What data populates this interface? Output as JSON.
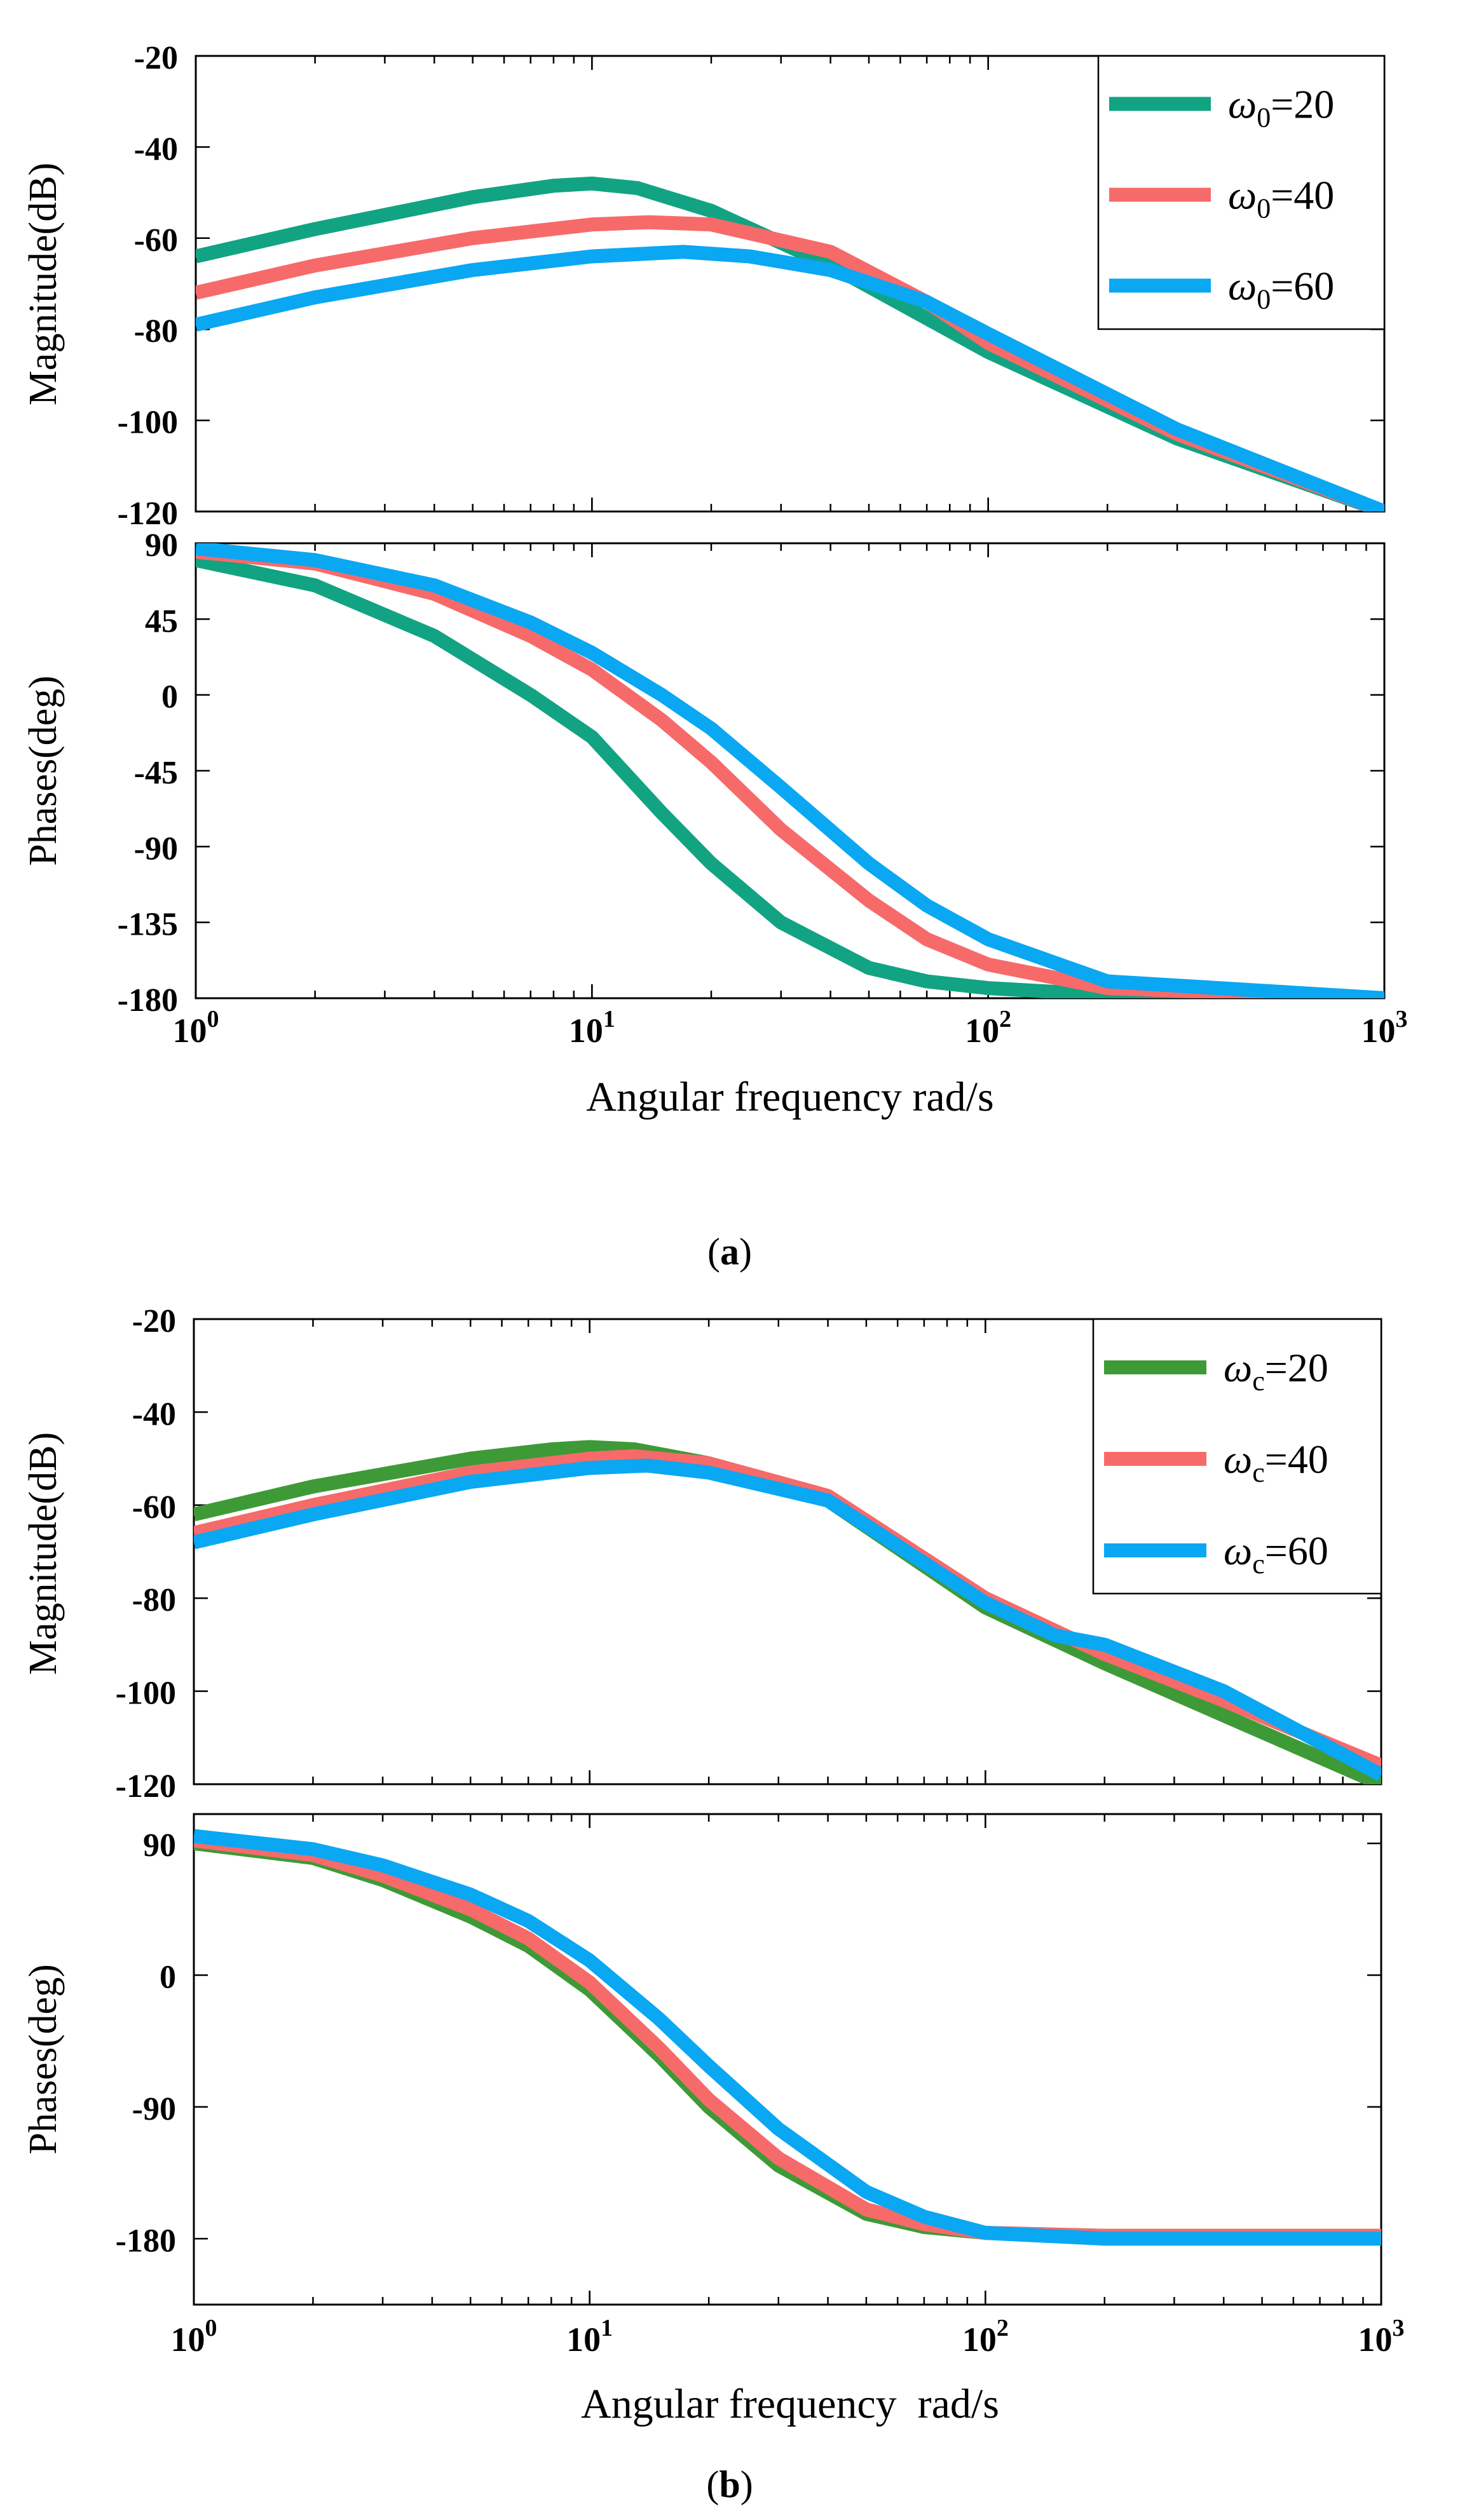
{
  "chart_data": [
    {
      "type": "line",
      "panel": "(a)",
      "caption_letter": "a",
      "xlabel": "Angular frequency rad/s",
      "xscale": "log",
      "xlim": [
        1,
        1000
      ],
      "xticks": [
        {
          "base": "10",
          "exp": "0"
        },
        {
          "base": "10",
          "exp": "1"
        },
        {
          "base": "10",
          "exp": "2"
        },
        {
          "base": "10",
          "exp": "3"
        }
      ],
      "legend": {
        "placement": "top-right",
        "symbol": "ω",
        "subscript": "0",
        "entries": [
          "=20",
          "=40",
          "=60"
        ]
      },
      "magnitude": {
        "ylabel": "Magnitude(dB)",
        "ylim": [
          -120,
          -20
        ],
        "yticks": [
          "-20",
          "-40",
          "-60",
          "-80",
          "-100",
          "-120"
        ],
        "series": [
          {
            "name": "ω0=20",
            "color": "#12a383",
            "x": [
              1,
              2,
              5,
              8,
              10,
              13,
              20,
              40,
              100,
              300,
              1000
            ],
            "y": [
              -64,
              -58,
              -51,
              -48.5,
              -48,
              -49,
              -54,
              -66,
              -85,
              -104,
              -120
            ]
          },
          {
            "name": "ω0=40",
            "color": "#f76a6a",
            "x": [
              1,
              2,
              5,
              10,
              14,
              20,
              40,
              70,
              100,
              300,
              1000
            ],
            "y": [
              -72,
              -66,
              -60,
              -57,
              -56.5,
              -57,
              -63,
              -74,
              -83,
              -103,
              -120
            ]
          },
          {
            "name": "ω0=60",
            "color": "#0aa7f3",
            "x": [
              1,
              2,
              5,
              10,
              17,
              25,
              40,
              70,
              100,
              300,
              1000
            ],
            "y": [
              -79,
              -73,
              -67,
              -64,
              -63,
              -64,
              -67,
              -74,
              -81,
              -102,
              -120
            ]
          }
        ]
      },
      "phase": {
        "ylabel": "Phases(deg)",
        "ylim": [
          -180,
          90
        ],
        "yticks": [
          "90",
          "45",
          "0",
          "-45",
          "-90",
          "-135",
          "-180"
        ],
        "series": [
          {
            "name": "ω0=20",
            "color": "#12a383",
            "x": [
              1,
              2,
              4,
              7,
              10,
              15,
              20,
              30,
              50,
              70,
              100,
              200,
              1000
            ],
            "y": [
              80,
              65,
              35,
              0,
              -25,
              -70,
              -100,
              -135,
              -162,
              -170,
              -174,
              -178,
              -180
            ]
          },
          {
            "name": "ω0=40",
            "color": "#f76a6a",
            "x": [
              1,
              2,
              4,
              7,
              10,
              15,
              20,
              30,
              50,
              70,
              100,
              200,
              1000
            ],
            "y": [
              85,
              78,
              60,
              35,
              15,
              -15,
              -40,
              -80,
              -122,
              -145,
              -160,
              -174,
              -180
            ]
          },
          {
            "name": "ω0=60",
            "color": "#0aa7f3",
            "x": [
              1,
              2,
              4,
              7,
              10,
              15,
              20,
              30,
              50,
              70,
              100,
              200,
              1000
            ],
            "y": [
              87,
              80,
              65,
              43,
              25,
              0,
              -20,
              -55,
              -100,
              -125,
              -145,
              -170,
              -180
            ]
          }
        ]
      }
    },
    {
      "type": "line",
      "panel": "(b)",
      "caption_letter": "b",
      "xlabel": "Angular frequency  rad/s",
      "xscale": "log",
      "xlim": [
        1,
        1000
      ],
      "xticks": [
        {
          "base": "10",
          "exp": "0"
        },
        {
          "base": "10",
          "exp": "1"
        },
        {
          "base": "10",
          "exp": "2"
        },
        {
          "base": "10",
          "exp": "3"
        }
      ],
      "legend": {
        "placement": "top-right",
        "symbol": "ω",
        "subscript": "c",
        "entries": [
          "=20",
          "=40",
          "=60"
        ]
      },
      "magnitude": {
        "ylabel": "Magnitude(dB)",
        "ylim": [
          -120,
          -20
        ],
        "yticks": [
          "-20",
          "-40",
          "-60",
          "-80",
          "-100",
          "-120"
        ],
        "series": [
          {
            "name": "ωc=20",
            "color": "#3e9a36",
            "x": [
              1,
              2,
              5,
              8,
              10,
              13,
              20,
              40,
              100,
              200,
              1000
            ],
            "y": [
              -62,
              -56,
              -50,
              -48,
              -47.5,
              -48,
              -51,
              -59,
              -82,
              -94,
              -120
            ]
          },
          {
            "name": "ωc=40",
            "color": "#f76a6a",
            "x": [
              1,
              2,
              5,
              10,
              13,
              20,
              40,
              100,
              200,
              400,
              1000
            ],
            "y": [
              -66,
              -60,
              -53,
              -50,
              -49.5,
              -51,
              -58,
              -80,
              -92,
              -102,
              -116
            ]
          },
          {
            "name": "ωc=60",
            "color": "#0aa7f3",
            "x": [
              1,
              2,
              5,
              10,
              14,
              20,
              40,
              100,
              150,
              200,
              400,
              1000
            ],
            "y": [
              -68,
              -62,
              -55,
              -52,
              -51.5,
              -53,
              -59,
              -81,
              -88,
              -90,
              -100,
              -118
            ]
          }
        ]
      },
      "phase": {
        "ylabel": "Phases(deg)",
        "ylim": [
          -225,
          110
        ],
        "yticks": [
          "90",
          "0",
          "-90",
          "-180"
        ],
        "series": [
          {
            "name": "ωc=20",
            "color": "#3e9a36",
            "x": [
              1,
              2,
              3,
              5,
              7,
              10,
              15,
              20,
              30,
              50,
              70,
              100,
              200,
              1000
            ],
            "y": [
              90,
              80,
              65,
              40,
              20,
              -10,
              -55,
              -90,
              -130,
              -163,
              -172,
              -176,
              -178,
              -178
            ]
          },
          {
            "name": "ωc=40",
            "color": "#f76a6a",
            "x": [
              1,
              2,
              3,
              5,
              7,
              10,
              15,
              20,
              30,
              50,
              70,
              100,
              200,
              1000
            ],
            "y": [
              92,
              82,
              68,
              45,
              25,
              -5,
              -50,
              -85,
              -125,
              -160,
              -170,
              -176,
              -178,
              -178
            ]
          },
          {
            "name": "ωc=60",
            "color": "#0aa7f3",
            "x": [
              1,
              2,
              3,
              5,
              7,
              10,
              15,
              20,
              30,
              50,
              70,
              100,
              200,
              1000
            ],
            "y": [
              95,
              86,
              75,
              55,
              37,
              10,
              -30,
              -62,
              -105,
              -148,
              -165,
              -176,
              -180,
              -180
            ]
          }
        ]
      }
    }
  ]
}
